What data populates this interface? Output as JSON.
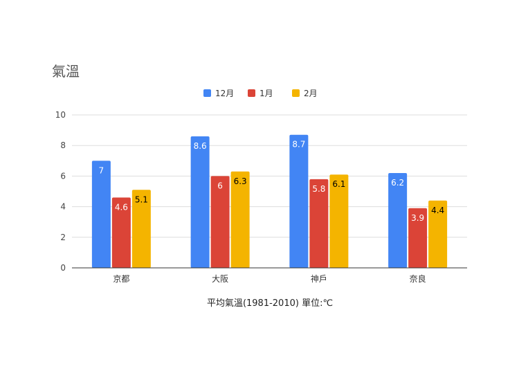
{
  "chart_data": {
    "type": "bar",
    "title": "氣溫",
    "xlabel": "平均氣溫(1981-2010) 單位:℃",
    "ylabel": "",
    "categories": [
      "京都",
      "大阪",
      "神戶",
      "奈良"
    ],
    "series": [
      {
        "name": "12月",
        "color": "#4285f4",
        "values": [
          7,
          8.6,
          8.7,
          6.2
        ],
        "label_color": "#ffffff"
      },
      {
        "name": "1月",
        "color": "#db4437",
        "values": [
          4.6,
          6,
          5.8,
          3.9
        ],
        "label_color": "#ffffff"
      },
      {
        "name": "2月",
        "color": "#f4b400",
        "values": [
          5.1,
          6.3,
          6.1,
          4.4
        ],
        "label_color": "#000000"
      }
    ],
    "ylim": [
      0,
      10
    ],
    "yticks": [
      0,
      2,
      4,
      6,
      8,
      10
    ],
    "grid": true,
    "legend_position": "top-center"
  }
}
